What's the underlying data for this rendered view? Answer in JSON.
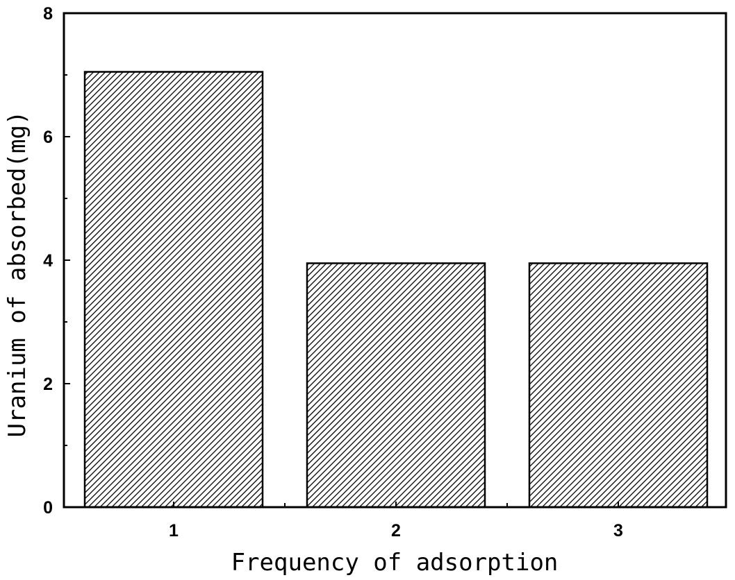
{
  "chart_data": {
    "type": "bar",
    "categories": [
      "1",
      "2",
      "3"
    ],
    "values": [
      7.05,
      3.95,
      3.95
    ],
    "xlabel": "Frequency of adsorption",
    "ylabel": "Uranium of absorbed(mg)",
    "ylim": [
      0,
      8
    ],
    "yticks_major": [
      0,
      2,
      4,
      6,
      8
    ],
    "yticks_minor": [
      1,
      3,
      5,
      7
    ],
    "grid": false,
    "bar_fill": "diagonal-hatch",
    "bar_color": "#000000"
  }
}
